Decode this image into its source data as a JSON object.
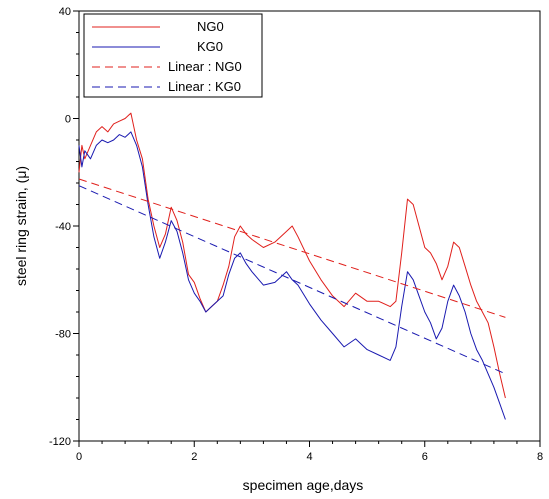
{
  "chart_data": {
    "type": "line",
    "xlabel": "specimen age,days",
    "ylabel": "steel ring strain, (μ)",
    "xlim": [
      0,
      8
    ],
    "ylim": [
      -120,
      40
    ],
    "xticks": [
      0,
      2,
      4,
      6,
      8
    ],
    "yticks": [
      40,
      0,
      -40,
      -80,
      -120
    ],
    "minor_ticks_per_major": 5,
    "grid": false,
    "legend": {
      "placement": "top-left",
      "entries": [
        "NG0",
        "KG0",
        "Linear : NG0",
        "Linear : KG0"
      ]
    },
    "colors": {
      "NG0": "#e0201c",
      "KG0": "#1a1ab0"
    },
    "series": [
      {
        "name": "NG0",
        "style": "solid",
        "color": "#e0201c",
        "x": [
          0,
          0.05,
          0.1,
          0.2,
          0.3,
          0.4,
          0.5,
          0.6,
          0.7,
          0.8,
          0.9,
          1.0,
          1.1,
          1.2,
          1.3,
          1.4,
          1.5,
          1.6,
          1.7,
          1.8,
          1.9,
          2.0,
          2.1,
          2.2,
          2.3,
          2.4,
          2.5,
          2.6,
          2.7,
          2.8,
          2.9,
          3.0,
          3.2,
          3.4,
          3.6,
          3.7,
          3.8,
          4.0,
          4.2,
          4.4,
          4.6,
          4.8,
          5.0,
          5.2,
          5.4,
          5.5,
          5.6,
          5.7,
          5.8,
          5.9,
          6.0,
          6.1,
          6.2,
          6.3,
          6.4,
          6.5,
          6.6,
          6.7,
          6.8,
          6.9,
          7.0,
          7.1,
          7.2,
          7.3,
          7.4
        ],
        "y": [
          -20,
          -10,
          -15,
          -10,
          -5,
          -3,
          -5,
          -2,
          -1,
          0,
          2,
          -8,
          -15,
          -30,
          -40,
          -48,
          -43,
          -33,
          -38,
          -46,
          -58,
          -61,
          -67,
          -72,
          -70,
          -68,
          -62,
          -55,
          -44,
          -40,
          -43,
          -45,
          -48,
          -46,
          -42,
          -40,
          -44,
          -53,
          -60,
          -66,
          -70,
          -65,
          -68,
          -68,
          -70,
          -68,
          -50,
          -30,
          -32,
          -40,
          -48,
          -50,
          -54,
          -60,
          -55,
          -46,
          -48,
          -55,
          -62,
          -68,
          -72,
          -76,
          -85,
          -95,
          -104
        ]
      },
      {
        "name": "KG0",
        "style": "solid",
        "color": "#1a1ab0",
        "x": [
          0,
          0.05,
          0.1,
          0.2,
          0.3,
          0.4,
          0.5,
          0.6,
          0.7,
          0.8,
          0.9,
          1.0,
          1.1,
          1.2,
          1.3,
          1.4,
          1.5,
          1.6,
          1.7,
          1.8,
          1.9,
          2.0,
          2.1,
          2.2,
          2.3,
          2.4,
          2.5,
          2.6,
          2.7,
          2.8,
          2.9,
          3.0,
          3.2,
          3.4,
          3.6,
          3.7,
          3.8,
          4.0,
          4.2,
          4.4,
          4.6,
          4.8,
          5.0,
          5.2,
          5.4,
          5.5,
          5.6,
          5.7,
          5.8,
          5.9,
          6.0,
          6.1,
          6.2,
          6.3,
          6.4,
          6.5,
          6.6,
          6.7,
          6.8,
          6.9,
          7.0,
          7.1,
          7.2,
          7.3,
          7.4
        ],
        "y": [
          -10,
          -18,
          -12,
          -15,
          -10,
          -8,
          -9,
          -8,
          -6,
          -7,
          -5,
          -10,
          -18,
          -32,
          -44,
          -52,
          -46,
          -38,
          -42,
          -50,
          -60,
          -65,
          -68,
          -72,
          -70,
          -68,
          -66,
          -58,
          -52,
          -50,
          -54,
          -57,
          -62,
          -61,
          -57,
          -60,
          -62,
          -69,
          -75,
          -80,
          -85,
          -82,
          -86,
          -88,
          -90,
          -85,
          -70,
          -57,
          -60,
          -66,
          -72,
          -76,
          -82,
          -78,
          -68,
          -62,
          -66,
          -72,
          -80,
          -86,
          -90,
          -95,
          -100,
          -106,
          -112
        ]
      },
      {
        "name": "Linear : NG0",
        "style": "dashed",
        "color": "#e0201c",
        "x": [
          0,
          7.4
        ],
        "y": [
          -22.5,
          -74
        ]
      },
      {
        "name": "Linear : KG0",
        "style": "dashed",
        "color": "#1a1ab0",
        "x": [
          0,
          7.4
        ],
        "y": [
          -25,
          -95
        ]
      }
    ]
  }
}
